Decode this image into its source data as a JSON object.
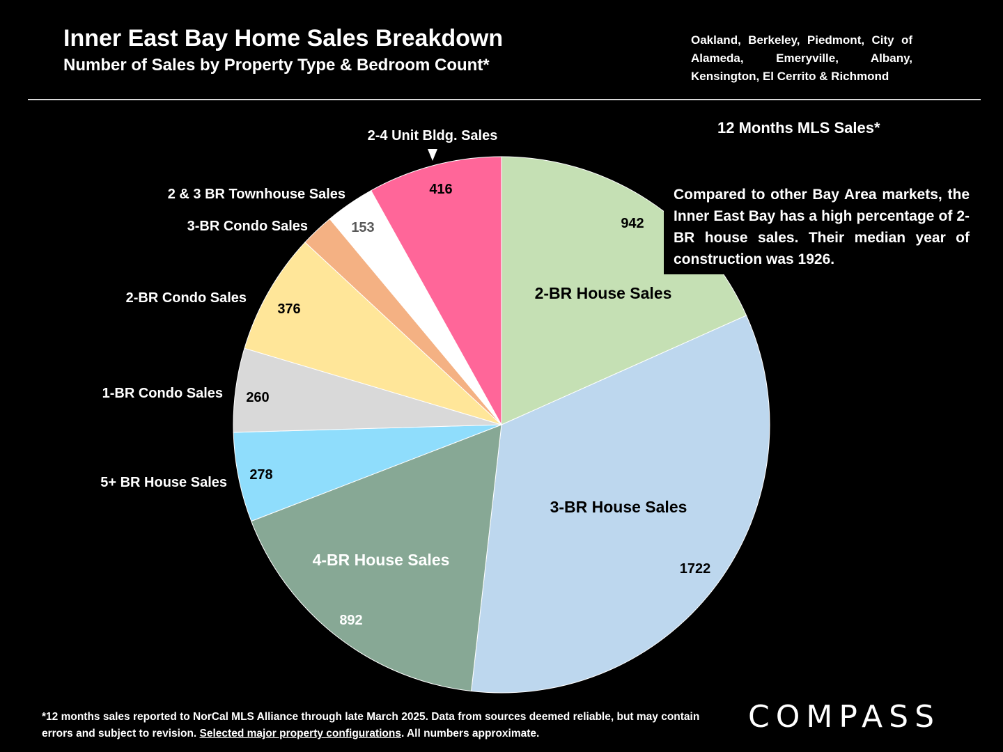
{
  "header": {
    "title": "Inner East Bay Home Sales Breakdown",
    "subtitle": "Number of Sales by Property Type & Bedroom Count*",
    "region": "Oakland, Berkeley, Piedmont, City of Alameda, Emeryville, Albany, Kensington, El Cerrito & Richmond"
  },
  "period_label": "12 Months MLS Sales*",
  "callout": "Compared to other Bay Area markets, the Inner East Bay has a high percentage of 2-BR house sales. Their median year of construction was 1926.",
  "footnote": {
    "part1": "*12 months sales reported to NorCal MLS Alliance through late March 2025. Data from sources deemed reliable, but may contain errors and subject to revision. ",
    "link": "Selected major property configurations",
    "part2": ". All numbers approximate."
  },
  "logo": "COMPASS",
  "chart_data": {
    "type": "pie",
    "title": "Inner East Bay Home Sales Breakdown",
    "subtitle": "Number of Sales by Property Type & Bedroom Count*",
    "start_angle": "12 o'clock, clockwise",
    "slices": [
      {
        "label": "2-BR House Sales",
        "value": 942,
        "color": "#C5E0B4"
      },
      {
        "label": "3-BR House Sales",
        "value": 1722,
        "color": "#BDD7EE"
      },
      {
        "label": "4-BR House Sales",
        "value": 892,
        "color": "#87A895"
      },
      {
        "label": "5+ BR House Sales",
        "value": 278,
        "color": "#8FDDFC"
      },
      {
        "label": "1-BR Condo Sales",
        "value": 260,
        "color": "#D9D9D9"
      },
      {
        "label": "2-BR Condo Sales",
        "value": 376,
        "color": "#FFE699"
      },
      {
        "label": "3-BR Condo Sales",
        "value": 104,
        "color": "#F4B183"
      },
      {
        "label": "2 & 3 BR Townhouse Sales",
        "value": 153,
        "color": "#FFFFFF"
      },
      {
        "label": "2-4 Unit Bldg. Sales",
        "value": 416,
        "color": "#FF6699"
      }
    ]
  }
}
